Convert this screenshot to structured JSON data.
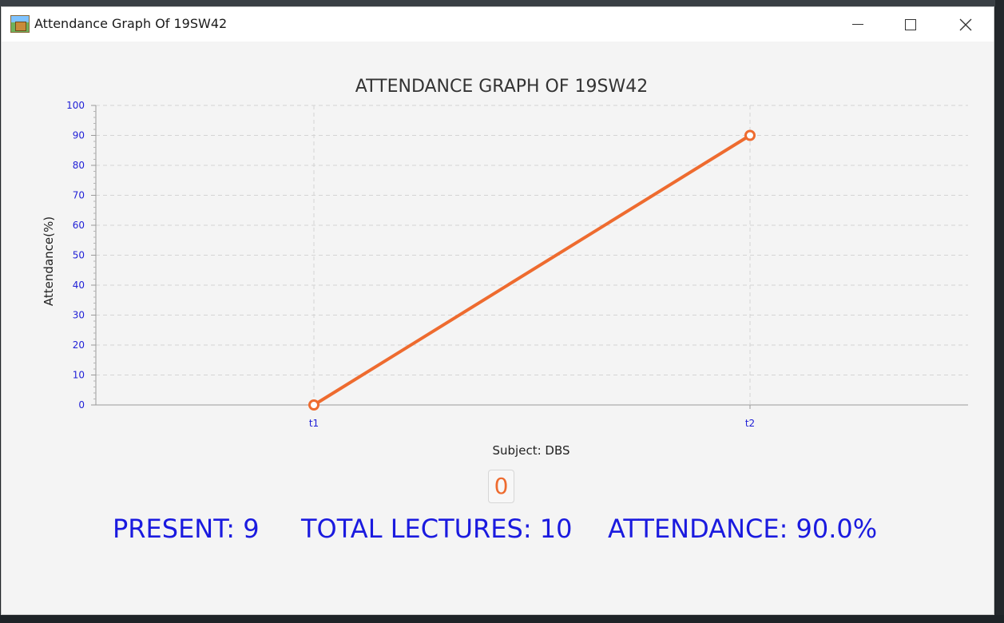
{
  "window": {
    "title": "Attendance Graph Of 19SW42",
    "icon": "app-icon"
  },
  "chart_data": {
    "type": "line",
    "title": "ATTENDANCE GRAPH OF 19SW42",
    "xlabel": "Subject: DBS",
    "ylabel": "Attendance(%)",
    "categories": [
      "t1",
      "t2"
    ],
    "series": [
      {
        "values": [
          0,
          90
        ],
        "color": "#ee6b2f"
      }
    ],
    "ylim": [
      0,
      100
    ],
    "yticks": [
      0,
      10,
      20,
      30,
      40,
      50,
      60,
      70,
      80,
      90,
      100
    ],
    "grid": true,
    "legend": "none"
  },
  "score_value": "0",
  "stats": {
    "present": "PRESENT: 9",
    "total_lectures": "TOTAL LECTURES: 10",
    "attendance": "ATTENDANCE: 90.0%"
  },
  "colors": {
    "accent": "#ee6b2f",
    "stat_text": "#1a1adf",
    "tick_text": "#1f1fd6"
  }
}
